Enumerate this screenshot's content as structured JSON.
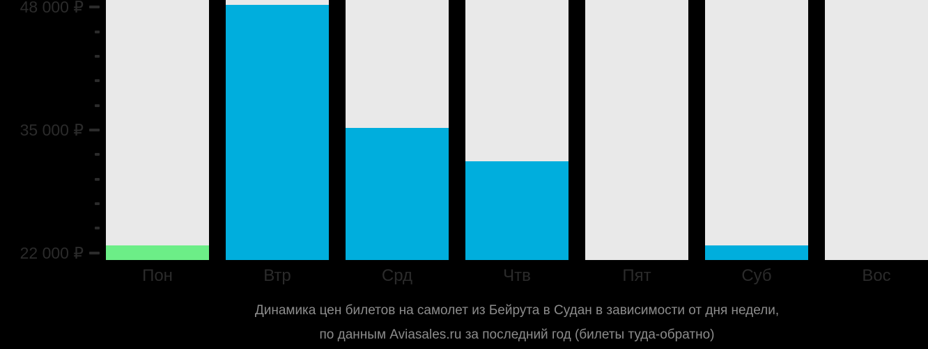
{
  "colors": {
    "background": "#000000",
    "bar_track": "#e9e9e9",
    "bar_blue": "#00aedd",
    "bar_green": "#6cee87",
    "axis_text": "#2b2b2b",
    "tick": "#2b2b2b",
    "caption_text": "#8c8c8c"
  },
  "chart_data": {
    "type": "bar",
    "categories": [
      "Пон",
      "Втр",
      "Срд",
      "Чтв",
      "Пят",
      "Суб",
      "Вос"
    ],
    "values": [
      22800,
      48200,
      35200,
      31700,
      null,
      22800,
      null
    ],
    "bar_colors": [
      "#6cee87",
      "#00aedd",
      "#00aedd",
      "#00aedd",
      null,
      "#00aedd",
      null
    ],
    "title": "Динамика цен билетов на самолет из Бейрута в Судан в зависимости от дня недели, по данным Aviasales.ru за последний год (билеты туда-обратно)",
    "xlabel": "",
    "ylabel": "",
    "ylim": [
      21250,
      48750
    ],
    "grid": false,
    "legend": false,
    "y_ticks": [
      {
        "value": 48000,
        "label": "48 000 ₽",
        "major": true
      },
      {
        "value": 45400,
        "label": "",
        "major": false
      },
      {
        "value": 42800,
        "label": "",
        "major": false
      },
      {
        "value": 40200,
        "label": "",
        "major": false
      },
      {
        "value": 37600,
        "label": "",
        "major": false
      },
      {
        "value": 35000,
        "label": "35 000 ₽",
        "major": true
      },
      {
        "value": 32400,
        "label": "",
        "major": false
      },
      {
        "value": 29800,
        "label": "",
        "major": false
      },
      {
        "value": 27200,
        "label": "",
        "major": false
      },
      {
        "value": 24600,
        "label": "",
        "major": false
      },
      {
        "value": 22000,
        "label": "22 000 ₽",
        "major": true
      }
    ]
  },
  "caption": {
    "line1": "Динамика цен билетов на самолет из Бейрута в Судан в зависимости от дня недели,",
    "line2": "по данным Aviasales.ru за последний год (билеты туда-обратно)"
  }
}
